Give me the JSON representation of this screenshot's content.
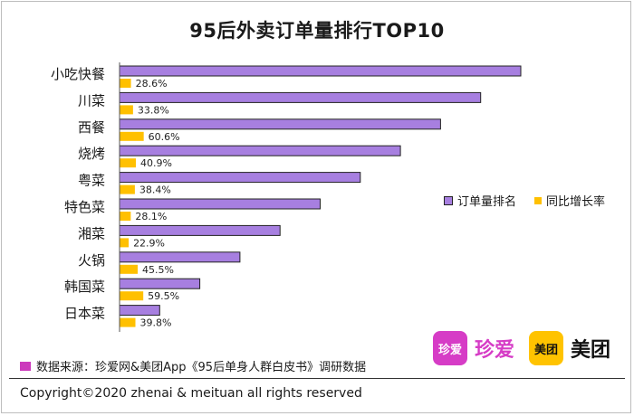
{
  "colors": {
    "rank_bar": "#a77fe0",
    "growth_bar": "#ffc000",
    "source_marker": "#cc39bc",
    "zhenai_brand": "#d63cc6",
    "meituan_brand": "#ffc300"
  },
  "chart_data": {
    "type": "bar",
    "orientation": "horizontal",
    "title": "95后外卖订单量排行TOP10",
    "categories": [
      "小吃快餐",
      "川菜",
      "西餐",
      "烧烤",
      "粤菜",
      "特色菜",
      "湘菜",
      "火锅",
      "韩国菜",
      "日本菜"
    ],
    "series": [
      {
        "name": "订单量排名",
        "values": [
          10,
          9,
          8,
          7,
          6,
          5,
          4,
          3,
          2,
          1
        ]
      },
      {
        "name": "同比增长率",
        "values": [
          28.6,
          33.8,
          60.6,
          40.9,
          38.4,
          28.1,
          22.9,
          45.5,
          59.5,
          39.8
        ],
        "labels": [
          "28.6%",
          "33.8%",
          "60.6%",
          "40.9%",
          "38.4%",
          "28.1%",
          "22.9%",
          "45.5%",
          "59.5%",
          "39.8%"
        ]
      }
    ],
    "legend_position": "right",
    "grid": false
  },
  "source_note": "数据来源：珍爱网&美团App《95后单身人群白皮书》调研数据",
  "logos": {
    "zhenai_icon_text": "珍爱",
    "zhenai_name": "珍爱",
    "meituan_icon_text": "美团",
    "meituan_name": "美团"
  },
  "footer": {
    "copyright": "Copyright©2020 zhenai & meituan all rights reserved"
  }
}
